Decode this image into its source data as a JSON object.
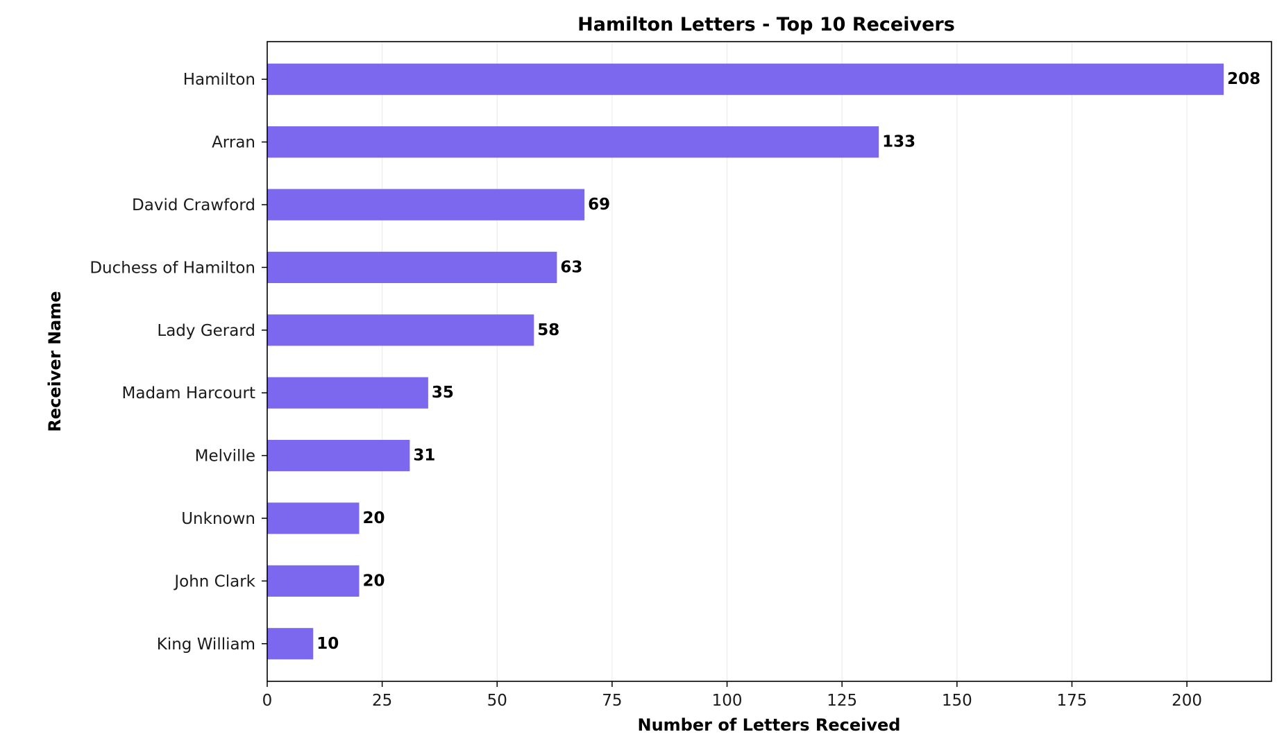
{
  "chart_data": {
    "type": "bar",
    "orientation": "horizontal",
    "title": "Hamilton Letters - Top 10 Receivers",
    "xlabel": "Number of Letters Received",
    "ylabel": "Receiver Name",
    "categories": [
      "Hamilton",
      "Arran",
      "David Crawford",
      "Duchess of Hamilton",
      "Lady Gerard",
      "Madam Harcourt",
      "Melville",
      "Unknown",
      "John Clark",
      "King William"
    ],
    "values": [
      208,
      133,
      69,
      63,
      58,
      35,
      31,
      20,
      20,
      10
    ],
    "data_labels": [
      "208",
      "133",
      "69",
      "63",
      "58",
      "35",
      "31",
      "20",
      "20",
      "10"
    ],
    "xlim": [
      0,
      218.4
    ],
    "xticks": [
      0,
      25,
      50,
      75,
      100,
      125,
      150,
      175,
      200
    ],
    "xtick_labels": [
      "0",
      "25",
      "50",
      "75",
      "100",
      "125",
      "150",
      "175",
      "200"
    ],
    "grid": "vertical",
    "bar_color": "#7b68ee"
  }
}
